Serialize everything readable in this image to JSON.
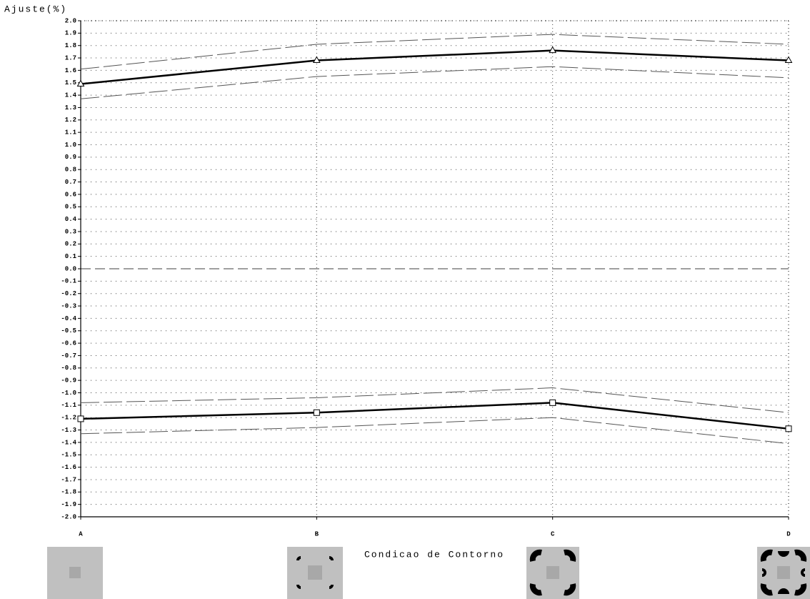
{
  "chart_data": {
    "type": "line",
    "y_label": "Ajuste(%)",
    "x_label": "Condicao de Contorno",
    "categories": [
      "A",
      "B",
      "C",
      "D"
    ],
    "ylim": [
      -2,
      2
    ],
    "yticks": [
      {
        "value": 2,
        "label": "2.0"
      },
      1.9,
      1.8,
      1.7,
      1.6,
      1.5,
      1.4,
      1.3,
      1.2,
      1.1,
      {
        "value": 1,
        "label": "1.0"
      },
      0.9,
      0.8,
      0.7,
      0.6,
      0.5,
      0.4,
      0.3,
      0.2,
      0.1,
      {
        "value": 0,
        "label": "0.0"
      },
      -0.1,
      -0.2,
      -0.3,
      -0.4,
      -0.5,
      -0.6,
      -0.7,
      -0.8,
      -0.9,
      {
        "value": -1,
        "label": "-1.0"
      },
      -1.1,
      -1.2,
      -1.3,
      -1.4,
      -1.5,
      -1.6,
      -1.7,
      -1.8,
      -1.9,
      {
        "value": -2,
        "label": "-2.0"
      }
    ],
    "grid": true,
    "series": [
      {
        "color": "#000000",
        "width": 2.5,
        "dashed": false,
        "marker": "triangle",
        "values": [
          1.49,
          1.68,
          1.76,
          1.68
        ]
      },
      {
        "color": "#555555",
        "width": 1,
        "dashed": true,
        "marker": null,
        "values": [
          1.61,
          1.81,
          1.89,
          1.81
        ]
      },
      {
        "color": "#555555",
        "width": 1,
        "dashed": true,
        "marker": null,
        "values": [
          1.37,
          1.55,
          1.63,
          1.54
        ]
      },
      {
        "color": "#000000",
        "width": 2.5,
        "dashed": false,
        "marker": "square",
        "values": [
          -1.21,
          -1.16,
          -1.08,
          -1.29
        ]
      },
      {
        "color": "#555555",
        "width": 1,
        "dashed": true,
        "marker": null,
        "values": [
          -1.08,
          -1.04,
          -0.96,
          -1.16
        ]
      },
      {
        "color": "#555555",
        "width": 1,
        "dashed": true,
        "marker": null,
        "values": [
          -1.33,
          -1.28,
          -1.2,
          -1.41
        ]
      }
    ]
  }
}
